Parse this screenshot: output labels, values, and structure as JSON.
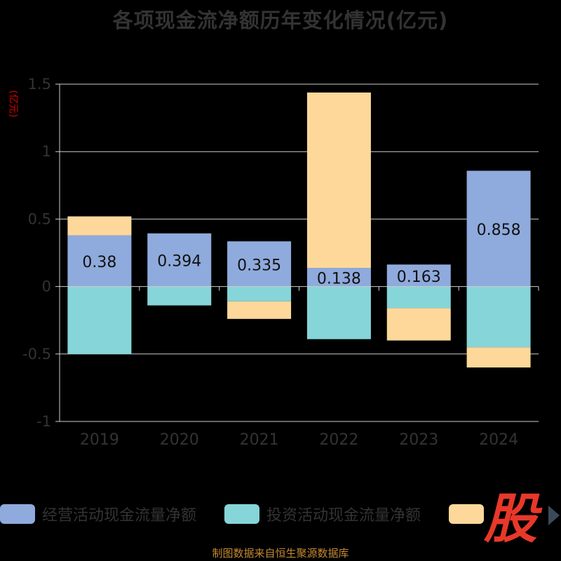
{
  "title": "各项现金流净额历年变化情况(亿元)",
  "unit_label": "(亿元)",
  "source": "制图数据来自恒生聚源数据库",
  "logo_text": "股",
  "colors": {
    "operating": "#8faadc",
    "investing": "#86d5d8",
    "financing": "#fdd89a",
    "grid": "#cccccc",
    "axis_text": "#333333",
    "unit_text": "#d40000",
    "source_text": "#c58a33",
    "logo": "#e8382a"
  },
  "legend": [
    {
      "label": "经营活动现金流量净额",
      "color": "#8faadc"
    },
    {
      "label": "投资活动现金流量净额",
      "color": "#86d5d8"
    },
    {
      "label": "",
      "color": "#fdd89a"
    }
  ],
  "chart_data": {
    "type": "bar",
    "stacked": true,
    "title": "各项现金流净额历年变化情况(亿元)",
    "ylabel": "(亿元)",
    "categories": [
      "2019",
      "2020",
      "2021",
      "2022",
      "2023",
      "2024"
    ],
    "ylim": [
      -1,
      1.5
    ],
    "yticks": [
      1.5,
      1,
      0.5,
      0,
      -0.5,
      -1
    ],
    "ytick_labels": [
      "1.5",
      "1",
      "0.5",
      "0",
      "-0.5",
      "-1"
    ],
    "grid": true,
    "legend_position": "bottom",
    "series": [
      {
        "name": "经营活动现金流量净额",
        "values": [
          0.38,
          0.394,
          0.335,
          0.138,
          0.163,
          0.858
        ],
        "labels": [
          "0.38",
          "0.394",
          "0.335",
          "0.138",
          "0.163",
          "0.858"
        ]
      },
      {
        "name": "投资活动现金流量净额",
        "values": [
          -0.5,
          -0.14,
          -0.11,
          -0.39,
          -0.16,
          -0.45
        ]
      },
      {
        "values": [
          0.14,
          0,
          -0.13,
          1.3,
          -0.24,
          -0.15
        ]
      }
    ]
  }
}
